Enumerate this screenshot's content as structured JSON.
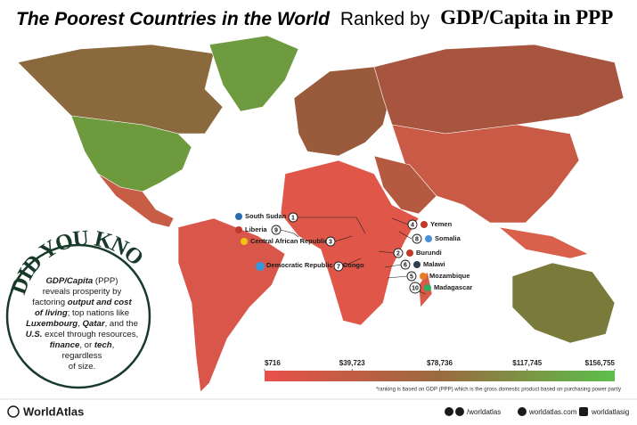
{
  "header": {
    "title_italic": "The Poorest Countries in the World",
    "title_mid": "Ranked by",
    "title_bold": "GDP/Capita in PPP"
  },
  "countries": [
    {
      "name": "South Sudan",
      "rank": 1
    },
    {
      "name": "Liberia",
      "rank": 9
    },
    {
      "name": "Central African Republic",
      "rank": 3
    },
    {
      "name": "Democratic Republic of Congo",
      "rank": 7
    },
    {
      "name": "Yemen",
      "rank": 4
    },
    {
      "name": "Somalia",
      "rank": 8
    },
    {
      "name": "Burundi",
      "rank": 2
    },
    {
      "name": "Malawi",
      "rank": 6
    },
    {
      "name": "Mozambique",
      "rank": 5
    },
    {
      "name": "Madagascar",
      "rank": 10
    }
  ],
  "did_you_know": {
    "heading": "DID YOU KNOW?",
    "lines": [
      [
        "GDP/Capita",
        " (PPP)"
      ],
      [
        "reveals prosperity by"
      ],
      [
        "factoring ",
        "output and cost"
      ],
      [
        "of living",
        "; top nations like"
      ],
      [
        "Luxembourg",
        ", ",
        "Qatar",
        ", and the"
      ],
      [
        "U.S.",
        " excel through resources,"
      ],
      [
        "finance",
        ", or ",
        "tech",
        ","
      ],
      [
        "regardless"
      ],
      [
        "of size."
      ]
    ]
  },
  "legend": {
    "ticks": [
      {
        "value": 716,
        "label": "$716"
      },
      {
        "value": 39723,
        "label": "$39,723"
      },
      {
        "value": 78736,
        "label": "$78,736"
      },
      {
        "value": 117745,
        "label": "$117,745"
      },
      {
        "value": 156755,
        "label": "$156,755"
      }
    ],
    "low_color": "#e8504a",
    "mid_color": "#9a6a3f",
    "high_color": "#5cbf4a",
    "footnote": "*ranking is based on GDP (PPP) which is the gross domestic product based on purchasing power parity"
  },
  "footer": {
    "brand": "WorldAtlas",
    "social": "/worldatlas",
    "site": "worldatlas.com",
    "instagram": "worldatlasig"
  }
}
